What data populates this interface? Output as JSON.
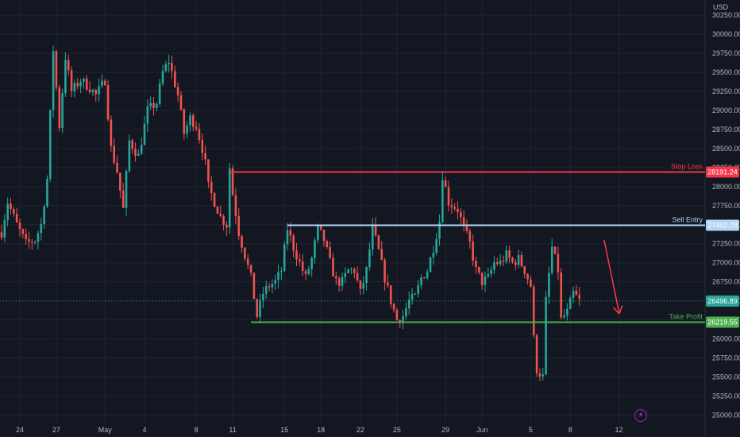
{
  "chart_data": {
    "type": "candlestick",
    "instrument_currency": "USD",
    "price_ticks": [
      "30250.00",
      "30000.00",
      "29750.00",
      "29500.00",
      "29250.00",
      "29000.00",
      "28750.00",
      "28500.00",
      "28250.00",
      "28000.00",
      "27750.00",
      "27500.00",
      "27250.00",
      "27000.00",
      "26750.00",
      "26500.00",
      "26250.00",
      "26000.00",
      "25750.00",
      "25500.00",
      "25250.00",
      "25000.00"
    ],
    "price_tick_values": [
      30250,
      30000,
      29750,
      29500,
      29250,
      29000,
      28750,
      28500,
      28250,
      28000,
      27750,
      27500,
      27250,
      27000,
      26750,
      26500,
      26250,
      26000,
      25750,
      25500,
      25250,
      25000
    ],
    "ylim": [
      24900,
      30450
    ],
    "date_ticks": [
      "24",
      "27",
      "May",
      "4",
      "8",
      "11",
      "15",
      "18",
      "22",
      "25",
      "29",
      "Jun",
      "5",
      "8",
      "12"
    ],
    "date_tick_bars": [
      6,
      18,
      34,
      47,
      64,
      76,
      93,
      105,
      118,
      130,
      146,
      158,
      174,
      187,
      203
    ],
    "total_bars": 221,
    "anchors": [
      [
        0,
        27400
      ],
      [
        2,
        27800
      ],
      [
        5,
        27500
      ],
      [
        8,
        27250
      ],
      [
        11,
        27300
      ],
      [
        13,
        27500
      ],
      [
        15,
        28100
      ],
      [
        17,
        29800
      ],
      [
        19,
        28800
      ],
      [
        21,
        29700
      ],
      [
        23,
        29250
      ],
      [
        26,
        29400
      ],
      [
        29,
        29300
      ],
      [
        31,
        29200
      ],
      [
        34,
        29400
      ],
      [
        36,
        28500
      ],
      [
        38,
        28200
      ],
      [
        40,
        27700
      ],
      [
        42,
        28600
      ],
      [
        45,
        28400
      ],
      [
        48,
        29000
      ],
      [
        51,
        29100
      ],
      [
        53,
        29500
      ],
      [
        55,
        29650
      ],
      [
        58,
        29200
      ],
      [
        60,
        28700
      ],
      [
        62,
        28900
      ],
      [
        64,
        28800
      ],
      [
        66,
        28500
      ],
      [
        67,
        28300
      ],
      [
        68,
        28000
      ],
      [
        70,
        27800
      ],
      [
        72,
        27600
      ],
      [
        74,
        27500
      ],
      [
        75,
        28250
      ],
      [
        76,
        27900
      ],
      [
        78,
        27400
      ],
      [
        80,
        27100
      ],
      [
        82,
        26800
      ],
      [
        84,
        26300
      ],
      [
        86,
        26600
      ],
      [
        88,
        26700
      ],
      [
        90,
        26750
      ],
      [
        92,
        26900
      ],
      [
        94,
        27450
      ],
      [
        96,
        27200
      ],
      [
        98,
        27000
      ],
      [
        100,
        26800
      ],
      [
        102,
        27050
      ],
      [
        104,
        27450
      ],
      [
        106,
        27300
      ],
      [
        108,
        27000
      ],
      [
        110,
        26750
      ],
      [
        112,
        26750
      ],
      [
        114,
        26900
      ],
      [
        116,
        26900
      ],
      [
        118,
        26600
      ],
      [
        120,
        26900
      ],
      [
        122,
        27450
      ],
      [
        124,
        27150
      ],
      [
        126,
        26800
      ],
      [
        128,
        26500
      ],
      [
        130,
        26250
      ],
      [
        132,
        26300
      ],
      [
        134,
        26500
      ],
      [
        136,
        26550
      ],
      [
        138,
        26800
      ],
      [
        140,
        26900
      ],
      [
        142,
        27200
      ],
      [
        144,
        27550
      ],
      [
        145,
        28150
      ],
      [
        147,
        27800
      ],
      [
        150,
        27700
      ],
      [
        152,
        27450
      ],
      [
        154,
        27250
      ],
      [
        156,
        26900
      ],
      [
        158,
        26750
      ],
      [
        160,
        26800
      ],
      [
        162,
        27000
      ],
      [
        164,
        27000
      ],
      [
        166,
        27100
      ],
      [
        168,
        27000
      ],
      [
        170,
        27050
      ],
      [
        172,
        26900
      ],
      [
        174,
        26700
      ],
      [
        175,
        26000
      ],
      [
        176,
        25600
      ],
      [
        178,
        25500
      ],
      [
        179,
        26500
      ],
      [
        181,
        27200
      ],
      [
        183,
        26900
      ],
      [
        184,
        26250
      ],
      [
        186,
        26350
      ],
      [
        188,
        26600
      ],
      [
        190,
        26500
      ]
    ],
    "levels": [
      {
        "name": "Stop Loss",
        "price_label": "28191.24",
        "value": 28191.24,
        "color": "#f23645",
        "tag_text_color": "#ffffff",
        "start_bar": 75
      },
      {
        "name": "Sell Entry",
        "price_label": "27492.78",
        "value": 27492.78,
        "color": "#b2d4f5",
        "tag_text_color": "#131722",
        "start_bar": 94
      },
      {
        "name": "Take Profit",
        "price_label": "26219.55",
        "value": 26219.55,
        "color": "#4caf50",
        "tag_text_color": "#ffffff",
        "start_bar": 82
      }
    ],
    "last_price": {
      "label": "26496.89",
      "value": 26496.89,
      "color": "#26a69a"
    },
    "projection": {
      "from_bar": 195,
      "from_value": 27300,
      "to_bar": 200,
      "to_value": 26330,
      "color": "#f23645"
    },
    "colors": {
      "background": "#131722",
      "up": "#26a69a",
      "down": "#ef5350",
      "grid": "#1f2430",
      "axis_text": "#b2b5be"
    },
    "grid": true
  },
  "icons": {
    "flash": "lightning-icon"
  },
  "flash_glyph": "⚡"
}
